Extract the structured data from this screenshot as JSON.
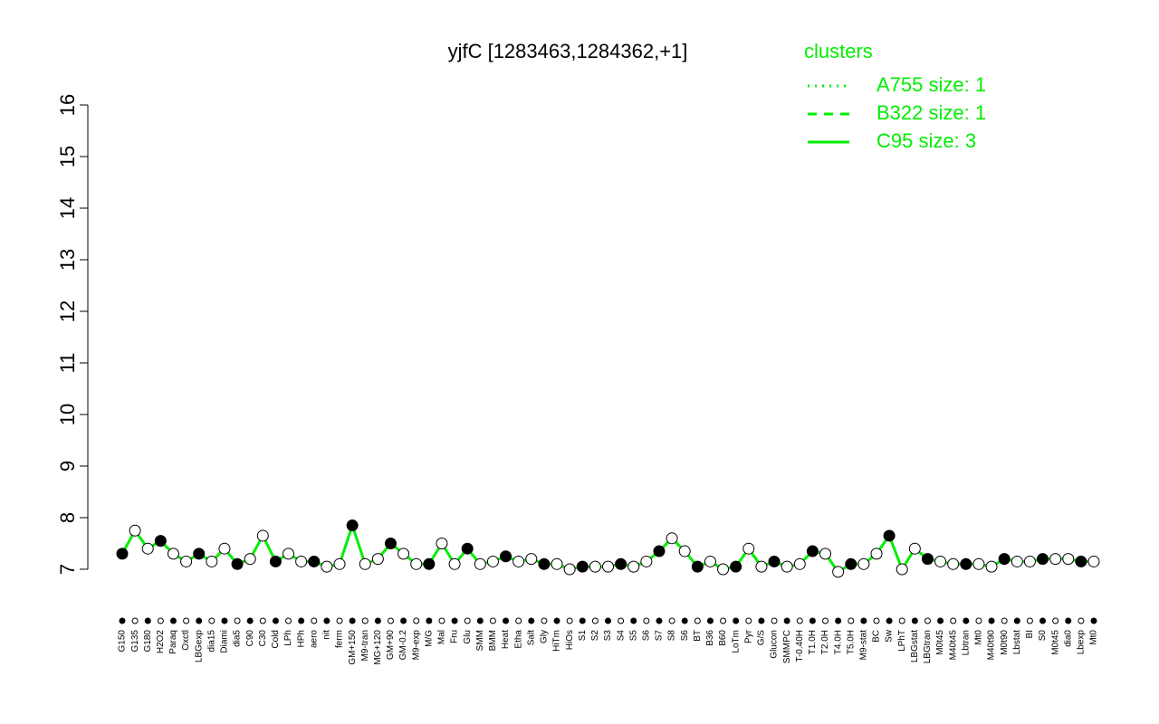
{
  "chart_data": {
    "type": "line",
    "title": "yjfC [1283463,1284362,+1]",
    "legend_title": "clusters",
    "legend": [
      {
        "name": "A755 size: 1",
        "dash": "2,6"
      },
      {
        "name": "B322 size: 1",
        "dash": "10,8"
      },
      {
        "name": "C95 size: 3",
        "dash": "none"
      }
    ],
    "color": "#00ee00",
    "categories": [
      "G150",
      "G135",
      "G180",
      "H2O2",
      "Paraq",
      "Oxctl",
      "LBGexp",
      "dia15",
      "Diami",
      "dia5",
      "C90",
      "C30",
      "Cold",
      "LPh",
      "HPh",
      "aero",
      "nit",
      "ferm",
      "GM+150",
      "M9-tran",
      "MG+120",
      "GM+90",
      "GM-0.2",
      "M9-exp",
      "M/G",
      "Mal",
      "Fru",
      "Glu",
      "SMM",
      "BMM",
      "Heat",
      "Etha",
      "Salt",
      "Gly",
      "HiTm",
      "HiOs",
      "S1",
      "S2",
      "S3",
      "S4",
      "S5",
      "S6",
      "S7",
      "S8",
      "S6",
      "BT",
      "B36",
      "B60",
      "LoTm",
      "Pyr",
      "G/S",
      "Glucon",
      "SMMPC",
      "T-0.40H",
      "T1.0H",
      "T2.0H",
      "T4.0H",
      "T5.0H",
      "M9-stat",
      "BC",
      "Sw",
      "LPhT",
      "LBGstat",
      "LBGtran",
      "M0t45",
      "M40t45",
      "Lbtran",
      "Mt0",
      "M40t90",
      "M0t90",
      "Lbstat",
      "BI",
      "S0",
      "M0t45",
      "dia0",
      "Lbexp",
      "Mt0"
    ],
    "values": [
      7.3,
      7.75,
      7.4,
      7.55,
      7.3,
      7.15,
      7.3,
      7.15,
      7.4,
      7.1,
      7.2,
      7.65,
      7.15,
      7.3,
      7.15,
      7.15,
      7.05,
      7.1,
      7.85,
      7.1,
      7.2,
      7.5,
      7.3,
      7.1,
      7.1,
      7.5,
      7.1,
      7.4,
      7.1,
      7.15,
      7.25,
      7.15,
      7.2,
      7.1,
      7.1,
      7.0,
      7.05,
      7.05,
      7.05,
      7.1,
      7.05,
      7.15,
      7.35,
      7.6,
      7.35,
      7.05,
      7.15,
      7.0,
      7.05,
      7.4,
      7.05,
      7.15,
      7.05,
      7.1,
      7.35,
      7.3,
      6.95,
      7.1,
      7.1,
      7.3,
      7.65,
      7.0,
      7.4,
      7.2,
      7.15,
      7.1,
      7.1,
      7.1,
      7.05,
      7.2,
      7.15,
      7.15,
      7.2,
      7.2,
      7.2,
      7.15,
      7.15
    ],
    "ylim": [
      7,
      16
    ],
    "yticks": [
      7,
      8,
      9,
      10,
      11,
      12,
      13,
      14,
      15,
      16
    ]
  }
}
